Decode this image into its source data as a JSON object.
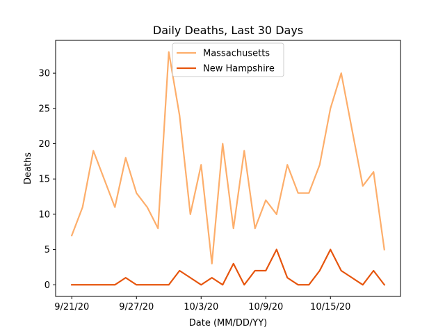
{
  "chart_data": {
    "type": "line",
    "title": "Daily Deaths, Last 30 Days",
    "xlabel": "Date (MM/DD/YY)",
    "ylabel": "Deaths",
    "x_ticks": [
      "9/21/20",
      "9/27/20",
      "10/3/20",
      "10/9/20",
      "10/15/20"
    ],
    "x_tick_index": [
      0,
      6,
      12,
      18,
      24
    ],
    "y_ticks": [
      0,
      5,
      10,
      15,
      20,
      25,
      30
    ],
    "ylim": [
      -1.65,
      34.65
    ],
    "xlim": [
      -1.5,
      30.5
    ],
    "grid": false,
    "legend_position": "upper-center",
    "series": [
      {
        "name": "Massachusetts",
        "color": "#fdae6b",
        "values": [
          7,
          11,
          19,
          15,
          11,
          18,
          13,
          11,
          8,
          33,
          24,
          10,
          17,
          3,
          20,
          8,
          19,
          8,
          12,
          10,
          17,
          13,
          13,
          17,
          25,
          30,
          22,
          14,
          16,
          5
        ]
      },
      {
        "name": "New Hampshire",
        "color": "#e6550d",
        "values": [
          0,
          0,
          0,
          0,
          0,
          1,
          0,
          0,
          0,
          0,
          2,
          1,
          0,
          1,
          0,
          3,
          0,
          2,
          2,
          5,
          1,
          0,
          0,
          2,
          5,
          2,
          1,
          0,
          2,
          0
        ]
      }
    ]
  }
}
